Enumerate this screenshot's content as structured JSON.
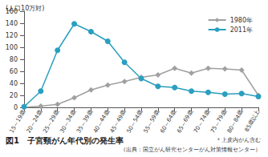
{
  "chart_data": {
    "type": "line",
    "title": "図1　子宮頸がん年代別の発生率",
    "subtitle": "（出典：国立がん研究センターがん対策情報センター）",
    "y_label": "(人口10万対)",
    "annotation": "＊上皮内がん含む",
    "categories": [
      "15～19歳",
      "20～24歳",
      "25～29歳",
      "30～34歳",
      "35～39歳",
      "40～44歳",
      "45～49歳",
      "50～54歳",
      "55～59歳",
      "60～64歳",
      "65～69歳",
      "70～74歳",
      "75～79歳",
      "80～84歳",
      "85歳以上"
    ],
    "series": [
      {
        "name": "1980年",
        "color": "#a0a0a0",
        "marker": "diamond",
        "values": [
          0,
          2,
          5,
          16,
          29,
          37,
          43,
          50,
          54,
          65,
          57,
          65,
          64,
          62,
          20
        ]
      },
      {
        "name": "2011年",
        "color": "#2a9fbf",
        "marker": "circle",
        "values": [
          1,
          27,
          95,
          139,
          126,
          110,
          75,
          48,
          35,
          33,
          27,
          25,
          22,
          23,
          18
        ]
      }
    ],
    "ylim": [
      0,
      160
    ],
    "yticks": [
      0,
      20,
      40,
      60,
      80,
      100,
      120,
      140,
      160
    ],
    "grid": false,
    "legend": "top-right"
  }
}
